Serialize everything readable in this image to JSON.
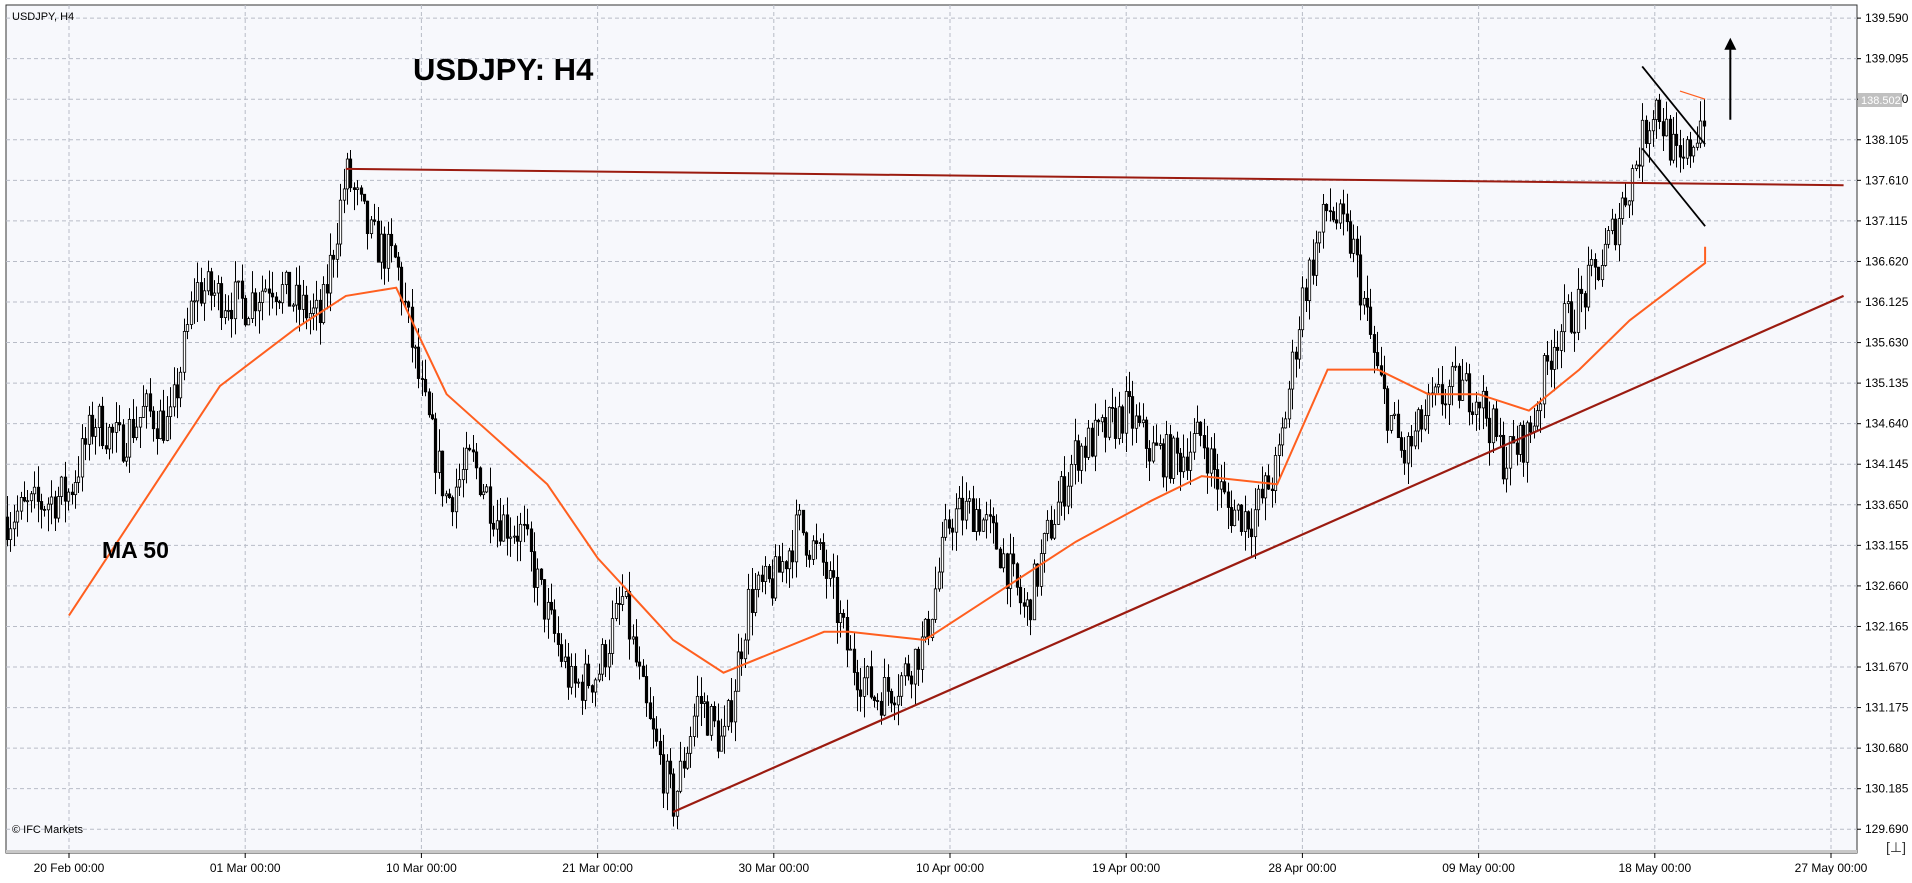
{
  "chart_data": {
    "type": "candlestick",
    "symbol_label": "USDJPY, H4",
    "title": "USDJPY: H4",
    "ma_label": "MA 50",
    "watermark": "© IFC Markets",
    "current_price": "138.502",
    "corner_button": "[⊥]",
    "ylim": [
      129.4,
      139.75
    ],
    "y_ticks": [
      "139.590",
      "139.095",
      "138.600",
      "138.105",
      "137.610",
      "137.115",
      "136.620",
      "136.125",
      "135.630",
      "135.135",
      "134.640",
      "134.145",
      "133.650",
      "133.155",
      "132.660",
      "132.165",
      "131.670",
      "131.175",
      "130.680",
      "130.185",
      "129.690"
    ],
    "x_ticks": [
      "20 Feb 00:00",
      "01 Mar 00:00",
      "10 Mar 00:00",
      "21 Mar 00:00",
      "30 Mar 00:00",
      "10 Apr 00:00",
      "19 Apr 00:00",
      "28 Apr 00:00",
      "09 May 00:00",
      "18 May 00:00",
      "27 May 00:00"
    ],
    "close_path": [
      [
        "20 Feb 00:00",
        133.8
      ],
      [
        "21 Feb 00:00",
        134.7
      ],
      [
        "22 Feb 00:00",
        134.4
      ],
      [
        "23 Feb 00:00",
        134.8
      ],
      [
        "24 Feb 00:00",
        134.6
      ],
      [
        "27 Feb 00:00",
        136.3
      ],
      [
        "28 Feb 00:00",
        136.2
      ],
      [
        "01 Mar 00:00",
        136.1
      ],
      [
        "02 Mar 00:00",
        136.4
      ],
      [
        "03 Mar 00:00",
        136.1
      ],
      [
        "06 Mar 00:00",
        135.9
      ],
      [
        "07 Mar 00:00",
        137.7
      ],
      [
        "08 Mar 00:00",
        136.9
      ],
      [
        "09 Mar 00:00",
        136.6
      ],
      [
        "10 Mar 00:00",
        135.0
      ],
      [
        "13 Mar 00:00",
        133.7
      ],
      [
        "14 Mar 00:00",
        134.2
      ],
      [
        "15 Mar 00:00",
        133.5
      ],
      [
        "16 Mar 00:00",
        133.3
      ],
      [
        "17 Mar 00:00",
        132.3
      ],
      [
        "20 Mar 00:00",
        131.4
      ],
      [
        "21 Mar 00:00",
        131.6
      ],
      [
        "22 Mar 00:00",
        132.5
      ],
      [
        "23 Mar 00:00",
        131.0
      ],
      [
        "24 Mar 00:00",
        130.0
      ],
      [
        "27 Mar 00:00",
        131.3
      ],
      [
        "28 Mar 00:00",
        130.7
      ],
      [
        "29 Mar 00:00",
        132.5
      ],
      [
        "30 Mar 00:00",
        132.7
      ],
      [
        "31 Mar 00:00",
        133.4
      ],
      [
        "03 Apr 00:00",
        132.9
      ],
      [
        "04 Apr 00:00",
        131.8
      ],
      [
        "05 Apr 00:00",
        131.3
      ],
      [
        "06 Apr 00:00",
        131.5
      ],
      [
        "07 Apr 00:00",
        132.0
      ],
      [
        "10 Apr 00:00",
        133.5
      ],
      [
        "11 Apr 00:00",
        133.6
      ],
      [
        "12 Apr 00:00",
        133.1
      ],
      [
        "13 Apr 00:00",
        132.3
      ],
      [
        "14 Apr 00:00",
        133.4
      ],
      [
        "17 Apr 00:00",
        134.3
      ],
      [
        "18 Apr 00:00",
        134.5
      ],
      [
        "19 Apr 00:00",
        134.8
      ],
      [
        "20 Apr 00:00",
        134.3
      ],
      [
        "21 Apr 00:00",
        134.2
      ],
      [
        "24 Apr 00:00",
        134.5
      ],
      [
        "25 Apr 00:00",
        133.6
      ],
      [
        "26 Apr 00:00",
        133.5
      ],
      [
        "27 Apr 00:00",
        134.1
      ],
      [
        "28 Apr 00:00",
        136.2
      ],
      [
        "01 May 00:00",
        137.3
      ],
      [
        "02 May 00:00",
        136.8
      ],
      [
        "03 May 00:00",
        135.2
      ],
      [
        "04 May 00:00",
        134.2
      ],
      [
        "05 May 00:00",
        134.8
      ],
      [
        "08 May 00:00",
        135.1
      ],
      [
        "09 May 00:00",
        135.0
      ],
      [
        "10 May 00:00",
        134.2
      ],
      [
        "11 May 00:00",
        134.5
      ],
      [
        "12 May 00:00",
        135.7
      ],
      [
        "15 May 00:00",
        136.1
      ],
      [
        "16 May 00:00",
        136.7
      ],
      [
        "17 May 00:00",
        137.6
      ],
      [
        "18 May 00:00",
        138.6
      ],
      [
        "19 May 00:00",
        137.7
      ],
      [
        "20 May 00:00",
        138.502
      ]
    ],
    "ma50_path": [
      [
        "20 Feb 00:00",
        132.3
      ],
      [
        "23 Feb 00:00",
        133.7
      ],
      [
        "28 Feb 00:00",
        135.1
      ],
      [
        "03 Mar 00:00",
        135.8
      ],
      [
        "07 Mar 00:00",
        136.2
      ],
      [
        "09 Mar 00:00",
        136.3
      ],
      [
        "13 Mar 00:00",
        135.0
      ],
      [
        "17 Mar 00:00",
        133.9
      ],
      [
        "21 Mar 00:00",
        133.0
      ],
      [
        "24 Mar 00:00",
        132.0
      ],
      [
        "28 Mar 00:00",
        131.6
      ],
      [
        "01 Apr 00:00",
        132.1
      ],
      [
        "04 Apr 00:00",
        132.1
      ],
      [
        "07 Apr 00:00",
        132.0
      ],
      [
        "11 Apr 00:00",
        132.4
      ],
      [
        "13 Apr 00:00",
        132.8
      ],
      [
        "17 Apr 00:00",
        133.2
      ],
      [
        "20 Apr 00:00",
        133.7
      ],
      [
        "24 Apr 00:00",
        134.0
      ],
      [
        "27 Apr 00:00",
        133.9
      ],
      [
        "01 May 00:00",
        135.3
      ],
      [
        "03 May 00:00",
        135.3
      ],
      [
        "05 May 00:00",
        135.0
      ],
      [
        "09 May 00:00",
        135.0
      ],
      [
        "11 May 00:00",
        134.8
      ],
      [
        "15 May 00:00",
        135.3
      ],
      [
        "17 May 00:00",
        135.9
      ],
      [
        "20 May 00:00",
        136.6
      ],
      [
        "21 May 00:00",
        136.8
      ]
    ],
    "support_trendline": [
      [
        "24 Mar 00:00",
        129.9
      ],
      [
        "29 May 12:00",
        136.2
      ]
    ],
    "resistance_line": [
      [
        "07 Mar 00:00",
        137.75
      ],
      [
        "29 May 12:00",
        137.55
      ]
    ],
    "pennant_upper_line": [
      [
        "19 May 00:00",
        138.7
      ],
      [
        "22 May 00:00",
        138.6
      ]
    ],
    "channel_top": [
      [
        "17 May 12:00",
        139.0
      ],
      [
        "21 May 12:00",
        138.05
      ]
    ],
    "channel_bottom": [
      [
        "17 May 12:00",
        138.0
      ],
      [
        "21 May 12:00",
        137.05
      ]
    ],
    "arrow": {
      "direction": "up",
      "from": [
        "23 May 00:00",
        138.35
      ],
      "to": [
        "23 May 00:00",
        139.35
      ]
    },
    "colors": {
      "price": "#000000",
      "ma50": "#ff5f1f",
      "trend": "#9b1b10",
      "grid": "#b8bcc7",
      "background": "#f7f8fc"
    }
  }
}
